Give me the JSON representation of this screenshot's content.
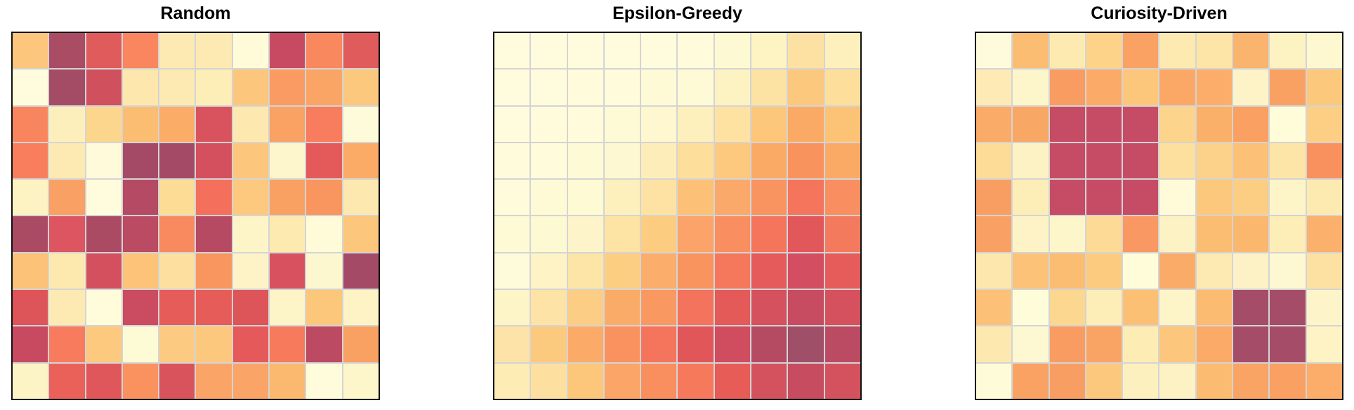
{
  "figure": {
    "background": "#ffffff",
    "panel_border_color": "#111111",
    "gridline_color": "#d4d4d4",
    "title_color": "#000000",
    "axes": "none (no ticks, no labels, no colorbar)"
  },
  "chart_data": [
    {
      "type": "heatmap",
      "title": "Random",
      "rows": 10,
      "cols": 10,
      "colormap": "pale-yellow (low) to orange to red to dark-rose (high)",
      "legend": "none",
      "cell_colors": [
        [
          "#fcc67c",
          "#aa4c64",
          "#e05b5c",
          "#f9865f",
          "#fdeab2",
          "#fdeab2",
          "#fffbd9",
          "#c74a62",
          "#f9885f",
          "#e05b5c"
        ],
        [
          "#fffcdd",
          "#a44c66",
          "#d0505e",
          "#fde7ac",
          "#fdeab3",
          "#fdedb6",
          "#fcc77d",
          "#f99b62",
          "#faa565",
          "#fcc87d"
        ],
        [
          "#f9855e",
          "#fdefbc",
          "#fcd68d",
          "#fbbd72",
          "#fbad68",
          "#d8535d",
          "#fde9b0",
          "#f9a263",
          "#f87c5e",
          "#fefbdb"
        ],
        [
          "#f87e5d",
          "#fdeab2",
          "#fffbda",
          "#a54a66",
          "#a54a66",
          "#d4505f",
          "#fcc77c",
          "#fdf6cc",
          "#e45a5b",
          "#fbab66"
        ],
        [
          "#fdf2c2",
          "#f9a164",
          "#fffcdd",
          "#b44a63",
          "#fddc96",
          "#f4705c",
          "#fcc97e",
          "#f9a163",
          "#f99660",
          "#fde9af"
        ],
        [
          "#ab4a63",
          "#dd5560",
          "#ab4a63",
          "#bb4a63",
          "#f98a60",
          "#b74a63",
          "#fdf5c7",
          "#fdeab0",
          "#fffbd9",
          "#fcc77c"
        ],
        [
          "#fcc278",
          "#fde8ad",
          "#d5505f",
          "#fcc379",
          "#fde0a0",
          "#f9965f",
          "#fdf3c6",
          "#d8515e",
          "#fdf7d0",
          "#a54a66"
        ],
        [
          "#dd5559",
          "#fdeab2",
          "#fffcdc",
          "#cb4c60",
          "#e65c59",
          "#e65c59",
          "#dd5459",
          "#fdf4c8",
          "#fcc77b",
          "#fdf3c4"
        ],
        [
          "#c74a61",
          "#f87b5e",
          "#fcc97e",
          "#fdfad6",
          "#fcca80",
          "#fcc87d",
          "#e6595a",
          "#f87a5d",
          "#bb4a62",
          "#f9a063"
        ],
        [
          "#fdf4c6",
          "#ea615a",
          "#df565b",
          "#f9925f",
          "#d8535c",
          "#fba468",
          "#fba468",
          "#fbb96f",
          "#fffcdc",
          "#fdf6cb"
        ]
      ]
    },
    {
      "type": "heatmap",
      "title": "Epsilon-Greedy",
      "rows": 10,
      "cols": 10,
      "colormap": "pale-yellow (low) to orange to red to dark-rose (high)",
      "legend": "none",
      "cell_colors": [
        [
          "#fffcde",
          "#fffcde",
          "#fffcde",
          "#fffcde",
          "#fffcde",
          "#fffbdb",
          "#fdf9d2",
          "#fdf3c3",
          "#fde1a2",
          "#fdf0bd"
        ],
        [
          "#fffcde",
          "#fffcde",
          "#fffbdb",
          "#fffbdb",
          "#fefad6",
          "#fefad6",
          "#fdf2c1",
          "#fde3a3",
          "#fcc87d",
          "#fdde9a"
        ],
        [
          "#fffcde",
          "#fffbdb",
          "#fffbdb",
          "#fefad6",
          "#fef7d0",
          "#fdf0bd",
          "#fde2a2",
          "#fcc77b",
          "#fbaa66",
          "#fcc376"
        ],
        [
          "#fffbdb",
          "#fffbdb",
          "#fefad6",
          "#fdf8d2",
          "#fdeeb9",
          "#fdde9b",
          "#fcc97e",
          "#fbaa66",
          "#f9935e",
          "#fbaa66"
        ],
        [
          "#fffbdb",
          "#fefad6",
          "#fdfad4",
          "#fdf0bc",
          "#fde2a3",
          "#fcc176",
          "#fba96a",
          "#f9935f",
          "#f5745c",
          "#f98f60"
        ],
        [
          "#fefad6",
          "#fdf9d3",
          "#fdf5c9",
          "#fde3a4",
          "#fccc81",
          "#fba369",
          "#f98f60",
          "#f5755c",
          "#e25759",
          "#f47a5d"
        ],
        [
          "#fdfbd9",
          "#fdf3c5",
          "#fde5a7",
          "#fcce82",
          "#fbad6b",
          "#f9945f",
          "#f5785d",
          "#e55a5a",
          "#d24e60",
          "#e55c5a"
        ],
        [
          "#fdf5c8",
          "#fde4a6",
          "#fccd84",
          "#fbab68",
          "#f99861",
          "#f4735c",
          "#e45a59",
          "#d5515e",
          "#c84c61",
          "#d5515e"
        ],
        [
          "#fde3a8",
          "#fcca7f",
          "#fbaa67",
          "#f9925f",
          "#f5745c",
          "#e05659",
          "#cf4d5f",
          "#b54a63",
          "#a04f68",
          "#bb4b63"
        ],
        [
          "#fdedb5",
          "#fde0a0",
          "#fcc77b",
          "#fba568",
          "#f98f5f",
          "#f7795c",
          "#e85c58",
          "#d4515e",
          "#c74c60",
          "#d4515e"
        ]
      ]
    },
    {
      "type": "heatmap",
      "title": "Curiosity-Driven",
      "rows": 10,
      "cols": 10,
      "colormap": "pale-yellow (low) to orange to red to dark-rose (high)",
      "legend": "none",
      "cell_colors": [
        [
          "#fefbdc",
          "#fbbd72",
          "#fdeab1",
          "#fcd389",
          "#f9a263",
          "#fdeab0",
          "#fde5a7",
          "#fbb46d",
          "#fdf2c2",
          "#fdf8d0"
        ],
        [
          "#fdeab4",
          "#fdf6cb",
          "#f99c62",
          "#fbaa67",
          "#fcc77b",
          "#fba766",
          "#fbad69",
          "#fdf3c6",
          "#f9a163",
          "#fcc87c"
        ],
        [
          "#fbab68",
          "#f9a765",
          "#c64c66",
          "#c64c66",
          "#c64c66",
          "#fcd48b",
          "#fbb06a",
          "#f9a062",
          "#fffcd9",
          "#fccf85"
        ],
        [
          "#fddc97",
          "#fdf2c4",
          "#c64c66",
          "#c64c66",
          "#c64c66",
          "#fddf9e",
          "#fcd28a",
          "#fcc176",
          "#fde4a7",
          "#f9915f"
        ],
        [
          "#f99e62",
          "#fdedb6",
          "#c64c66",
          "#c64c66",
          "#c64c66",
          "#fffbd8",
          "#fcc87c",
          "#fcce84",
          "#fdf5c8",
          "#fdeab1"
        ],
        [
          "#f9a164",
          "#fdf3c6",
          "#fdf6cb",
          "#fdda96",
          "#f99862",
          "#fdf2c3",
          "#fbbd72",
          "#fbb76e",
          "#fdedb6",
          "#fbb16b"
        ],
        [
          "#fde7ac",
          "#fcc378",
          "#fbbd72",
          "#fccb80",
          "#fffcd9",
          "#fbab68",
          "#fdeab2",
          "#fdf2c5",
          "#fdf8d2",
          "#fde1a2"
        ],
        [
          "#fcc177",
          "#fffcda",
          "#fcd78f",
          "#fdeeb8",
          "#fcc074",
          "#fdf5c8",
          "#fbbb70",
          "#a54c68",
          "#a54c68",
          "#fdf5c9"
        ],
        [
          "#fde9b0",
          "#fdf8d1",
          "#f99c62",
          "#f9a364",
          "#fdedb4",
          "#fcc77c",
          "#fbab67",
          "#a54c68",
          "#a54c68",
          "#fdf3c5"
        ],
        [
          "#fefbd9",
          "#f9a264",
          "#f99e62",
          "#fcc87d",
          "#fdf0bf",
          "#fdf2c4",
          "#fbbc71",
          "#f9a465",
          "#f9a062",
          "#fbad69"
        ]
      ]
    }
  ]
}
